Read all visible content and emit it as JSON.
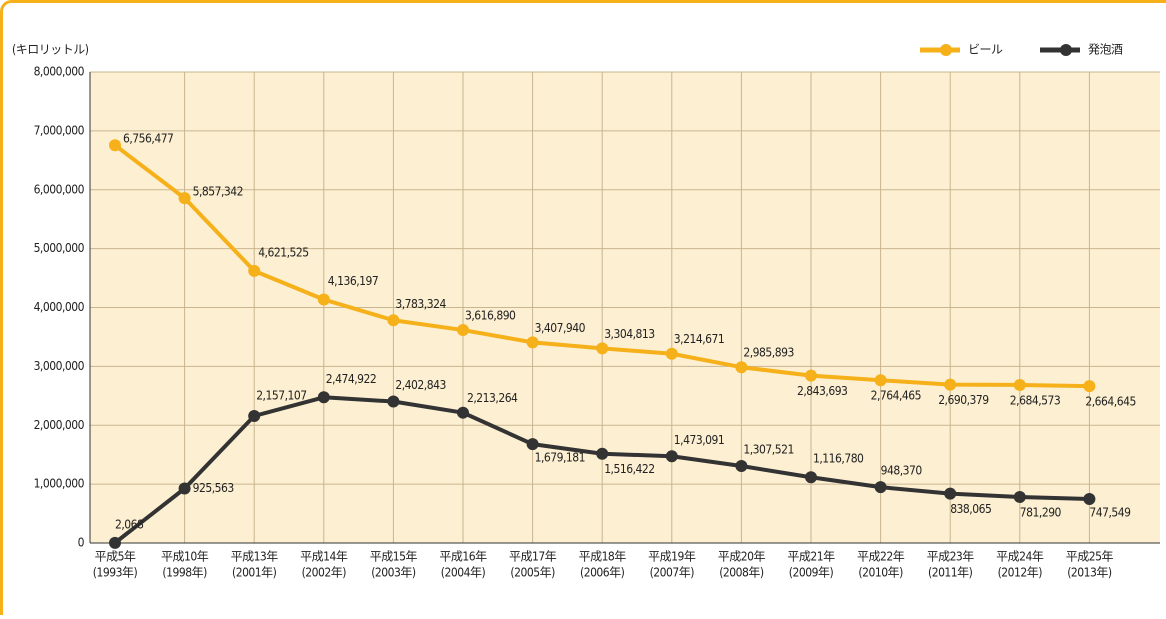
{
  "chart_data": {
    "type": "line",
    "y_label": "(キロリットル)",
    "categories": [
      [
        "平成5年",
        "(1993年)"
      ],
      [
        "平成10年",
        "(1998年)"
      ],
      [
        "平成13年",
        "(2001年)"
      ],
      [
        "平成14年",
        "(2002年)"
      ],
      [
        "平成15年",
        "(2003年)"
      ],
      [
        "平成16年",
        "(2004年)"
      ],
      [
        "平成17年",
        "(2005年)"
      ],
      [
        "平成18年",
        "(2006年)"
      ],
      [
        "平成19年",
        "(2007年)"
      ],
      [
        "平成20年",
        "(2008年)"
      ],
      [
        "平成21年",
        "(2009年)"
      ],
      [
        "平成22年",
        "(2010年)"
      ],
      [
        "平成23年",
        "(2011年)"
      ],
      [
        "平成24年",
        "(2012年)"
      ],
      [
        "平成25年",
        "(2013年)"
      ]
    ],
    "series": [
      {
        "name": "ビール",
        "color": "#f5b01a",
        "values": [
          6756477,
          5857342,
          4621525,
          4136197,
          3783324,
          3616890,
          3407940,
          3304813,
          3214671,
          2985893,
          2843693,
          2764465,
          2690379,
          2684573,
          2664645
        ],
        "value_labels": [
          "6,756,477",
          "5,857,342",
          "4,621,525",
          "4,136,197",
          "3,783,324",
          "3,616,890",
          "3,407,940",
          "3,304,813",
          "3,214,671",
          "2,985,893",
          "2,843,693",
          "2,764,465",
          "2,690,379",
          "2,684,573",
          "2,664,645"
        ]
      },
      {
        "name": "発泡酒",
        "color": "#333333",
        "values": [
          2068,
          925563,
          2157107,
          2474922,
          2402843,
          2213264,
          1679181,
          1516422,
          1473091,
          1307521,
          1116780,
          948370,
          838065,
          781290,
          747549
        ],
        "value_labels": [
          "2,068",
          "925,563",
          "2,157,107",
          "2,474,922",
          "2,402,843",
          "2,213,264",
          "1,679,181",
          "1,516,422",
          "1,473,091",
          "1,307,521",
          "1,116,780",
          "948,370",
          "838,065",
          "781,290",
          "747,549"
        ]
      }
    ],
    "ylim": [
      0,
      8000000
    ],
    "yticks": [
      0,
      {
        "value": 1000000,
        "label": "1,000,000"
      },
      {
        "value": 2000000,
        "label": "2,000,000"
      },
      {
        "value": 3000000,
        "label": "3,000,000"
      },
      {
        "value": 4000000,
        "label": "4,000,000"
      },
      {
        "value": 5000000,
        "label": "5,000,000"
      },
      {
        "value": 6000000,
        "label": "6,000,000"
      },
      {
        "value": 7000000,
        "label": "7,000,000"
      },
      {
        "value": 8000000,
        "label": "8,000,000"
      }
    ],
    "grid": true,
    "legend": "top-right"
  }
}
